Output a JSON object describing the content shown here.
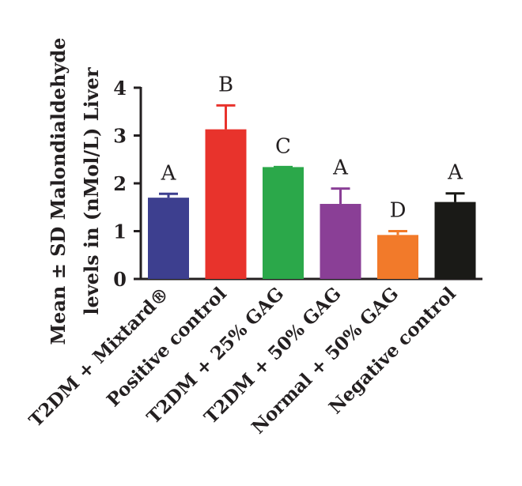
{
  "chart_data": {
    "type": "bar",
    "title": "",
    "ylabel_lines": [
      "Mean ± SD Malondialdehyde",
      "levels in (nMol/L) Liver"
    ],
    "xlabel": "",
    "ylim": [
      0,
      4
    ],
    "yticks": [
      0,
      1,
      2,
      3,
      4
    ],
    "categories": [
      "T2DM + Mixtard®",
      "Positive control",
      "T2DM + 25% GAG",
      "T2DM + 50% GAG",
      "Normal + 50% GAG",
      "Negative control"
    ],
    "values": [
      1.7,
      3.13,
      2.34,
      1.57,
      0.92,
      1.61
    ],
    "errors": [
      0.08,
      0.5,
      0.0,
      0.32,
      0.08,
      0.18
    ],
    "group_letters": [
      "A",
      "B",
      "C",
      "A",
      "D",
      "A"
    ],
    "colors": [
      "#3d3f8f",
      "#e8332c",
      "#2ba84a",
      "#8a3f96",
      "#f27a2a",
      "#1a1a17"
    ],
    "grid": false
  }
}
